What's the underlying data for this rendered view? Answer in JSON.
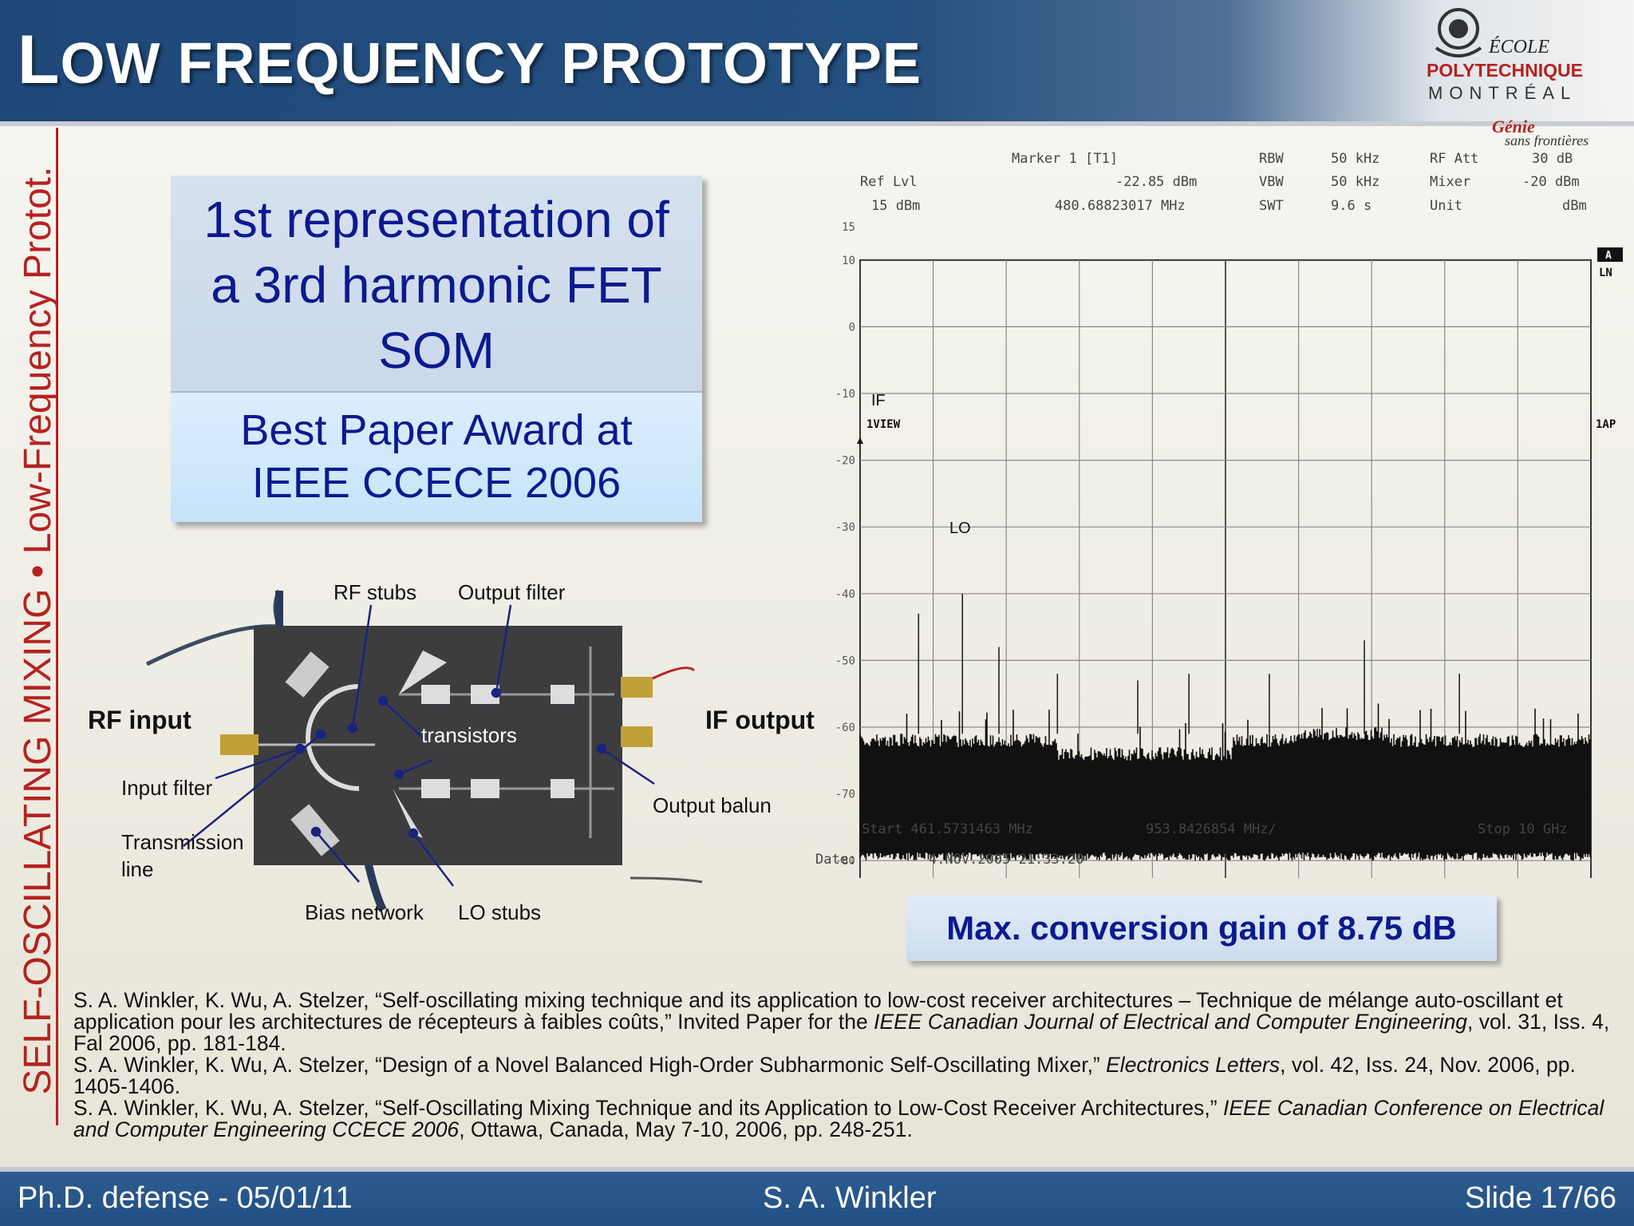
{
  "header": {
    "title_first": "L",
    "title_rest": "OW FREQUENCY PROTOTYPE"
  },
  "logo": {
    "line1": "ÉCOLE",
    "line2": "POLYTECHNIQUE",
    "line3": "MONTRÉAL",
    "tag1": "Génie",
    "tag2": "sans frontières"
  },
  "side_title": "SELF-OSCILLATING MIXING • Low-Frequency Protot.",
  "callout": {
    "top_lines": [
      "1st representation of",
      "a 3rd harmonic FET",
      "SOM"
    ],
    "bottom_lines": [
      "Best Paper Award at",
      "IEEE CCECE 2006"
    ]
  },
  "photo_labels": {
    "rf_stubs": "RF stubs",
    "output_filter": "Output filter",
    "rf_input": "RF input",
    "if_output": "IF output",
    "transistors": "transistors",
    "input_filter": "Input filter",
    "output_balun": "Output balun",
    "transmission_line_1": "Transmission",
    "transmission_line_2": "line",
    "bias_network": "Bias network",
    "lo_stubs": "LO stubs"
  },
  "spectrum": {
    "marker": "Marker 1 [T1]",
    "ref_lvl_label": "Ref Lvl",
    "ref_lvl_value": "15 dBm",
    "marker_level": "-22.85 dBm",
    "marker_freq": "480.68823017 MHz",
    "rbw_label": "RBW",
    "rbw_value": "50 kHz",
    "vbw_label": "VBW",
    "vbw_value": "50 kHz",
    "swt_label": "SWT",
    "swt_value": "9.6 s",
    "rfatt_label": "RF Att",
    "rfatt_value": "30 dB",
    "mixer_label": "Mixer",
    "mixer_value": "-20 dBm",
    "unit_label": "Unit",
    "unit_value": "dBm",
    "start": "Start 461.5731463 MHz",
    "div": "953.8426854 MHz/",
    "stop": "Stop 10 GHz",
    "date_label": "Date:",
    "date_value": "4.NOV.2005   21:33:20",
    "trace_label": "1VIEW",
    "right_a": "A",
    "right_ln": "LN",
    "right_1ap": "1AP",
    "if_label": "IF",
    "lo_label": "LO",
    "y_ticks": [
      "15",
      "10",
      "0",
      "-10",
      "-20",
      "-30",
      "-40",
      "-50",
      "-60",
      "-70",
      "-80",
      "-85"
    ]
  },
  "gain_box": "Max. conversion gain of 8.75 dB",
  "references": [
    {
      "pre": "S. A. Winkler, K. Wu, A. Stelzer, “Self-oscillating mixing technique and its application to low-cost receiver architectures – Technique de mélange auto-oscillant et application pour les architectures de récepteurs à faibles coûts,” Invited Paper for the ",
      "ital": "IEEE Canadian Journal of Electrical and Computer Engineering",
      "post": ", vol. 31, Iss. 4, Fal 2006, pp. 181-184."
    },
    {
      "pre": "S. A. Winkler, K. Wu, A. Stelzer, “Design of a Novel Balanced High-Order Subharmonic Self-Oscillating Mixer,” ",
      "ital": "Electronics Letters",
      "post": ", vol. 42, Iss. 24, Nov. 2006, pp. 1405-1406."
    },
    {
      "pre": "S. A. Winkler, K. Wu, A. Stelzer, “Self-Oscillating Mixing Technique and its Application to Low-Cost Receiver Architectures,” ",
      "ital": "IEEE Canadian Conference on Electrical and Computer Engineering CCECE 2006",
      "post": ", Ottawa, Canada, May 7-10, 2006, pp. 248-251."
    }
  ],
  "footer": {
    "left": "Ph.D. defense - 05/01/11",
    "center": "S. A. Winkler",
    "right": "Slide 17/66"
  }
}
